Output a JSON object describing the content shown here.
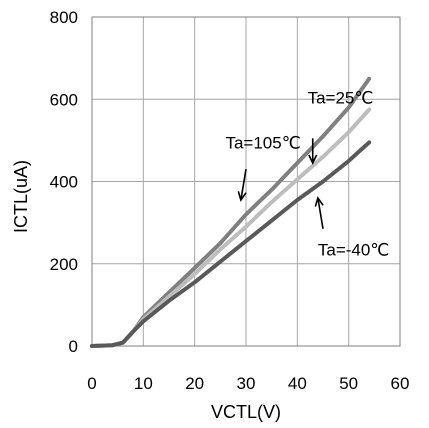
{
  "chart_data": {
    "type": "line",
    "xlabel": "VCTL(V)",
    "ylabel": "ICTL(uA)",
    "xlim": [
      0,
      60
    ],
    "ylim": [
      0,
      800
    ],
    "x_ticks": [
      0,
      10,
      20,
      30,
      40,
      50,
      60
    ],
    "y_ticks": [
      0,
      200,
      400,
      600,
      800
    ],
    "x_tick_labels": [
      "0",
      "10",
      "20",
      "30",
      "40",
      "50",
      "60"
    ],
    "y_tick_labels": [
      "0",
      "200",
      "400",
      "600",
      "800"
    ],
    "grid": true,
    "legend": "none",
    "series": [
      {
        "name": "Ta=25℃",
        "color": "#808080",
        "points": [
          [
            0,
            0
          ],
          [
            4,
            2
          ],
          [
            6,
            8
          ],
          [
            8,
            35
          ],
          [
            10,
            70
          ],
          [
            15,
            130
          ],
          [
            20,
            190
          ],
          [
            25,
            250
          ],
          [
            30,
            320
          ],
          [
            35,
            380
          ],
          [
            40,
            445
          ],
          [
            45,
            510
          ],
          [
            50,
            580
          ],
          [
            54,
            650
          ]
        ]
      },
      {
        "name": "Ta=105℃",
        "color": "#bdbdbd",
        "points": [
          [
            0,
            0
          ],
          [
            4,
            2
          ],
          [
            6,
            8
          ],
          [
            8,
            35
          ],
          [
            10,
            65
          ],
          [
            15,
            120
          ],
          [
            20,
            175
          ],
          [
            25,
            235
          ],
          [
            30,
            290
          ],
          [
            35,
            350
          ],
          [
            40,
            405
          ],
          [
            45,
            460
          ],
          [
            50,
            520
          ],
          [
            54,
            575
          ]
        ]
      },
      {
        "name": "Ta=-40℃",
        "color": "#595959",
        "points": [
          [
            0,
            0
          ],
          [
            4,
            2
          ],
          [
            6,
            8
          ],
          [
            8,
            35
          ],
          [
            10,
            60
          ],
          [
            15,
            110
          ],
          [
            20,
            155
          ],
          [
            25,
            205
          ],
          [
            30,
            255
          ],
          [
            35,
            305
          ],
          [
            40,
            355
          ],
          [
            45,
            400
          ],
          [
            50,
            450
          ],
          [
            54,
            495
          ]
        ]
      }
    ],
    "annotations": [
      {
        "text": "Ta=25℃",
        "x": 42,
        "y": 590,
        "arrow_from": [
          43,
          505
        ],
        "arrow_to": [
          43,
          445
        ]
      },
      {
        "text": "Ta=105℃",
        "x": 26,
        "y": 480,
        "arrow_from": [
          30,
          430
        ],
        "arrow_to": [
          29,
          355
        ]
      },
      {
        "text": "Ta=-40℃",
        "x": 44,
        "y": 220,
        "arrow_from": [
          45,
          285
        ],
        "arrow_to": [
          44,
          360
        ]
      }
    ]
  }
}
